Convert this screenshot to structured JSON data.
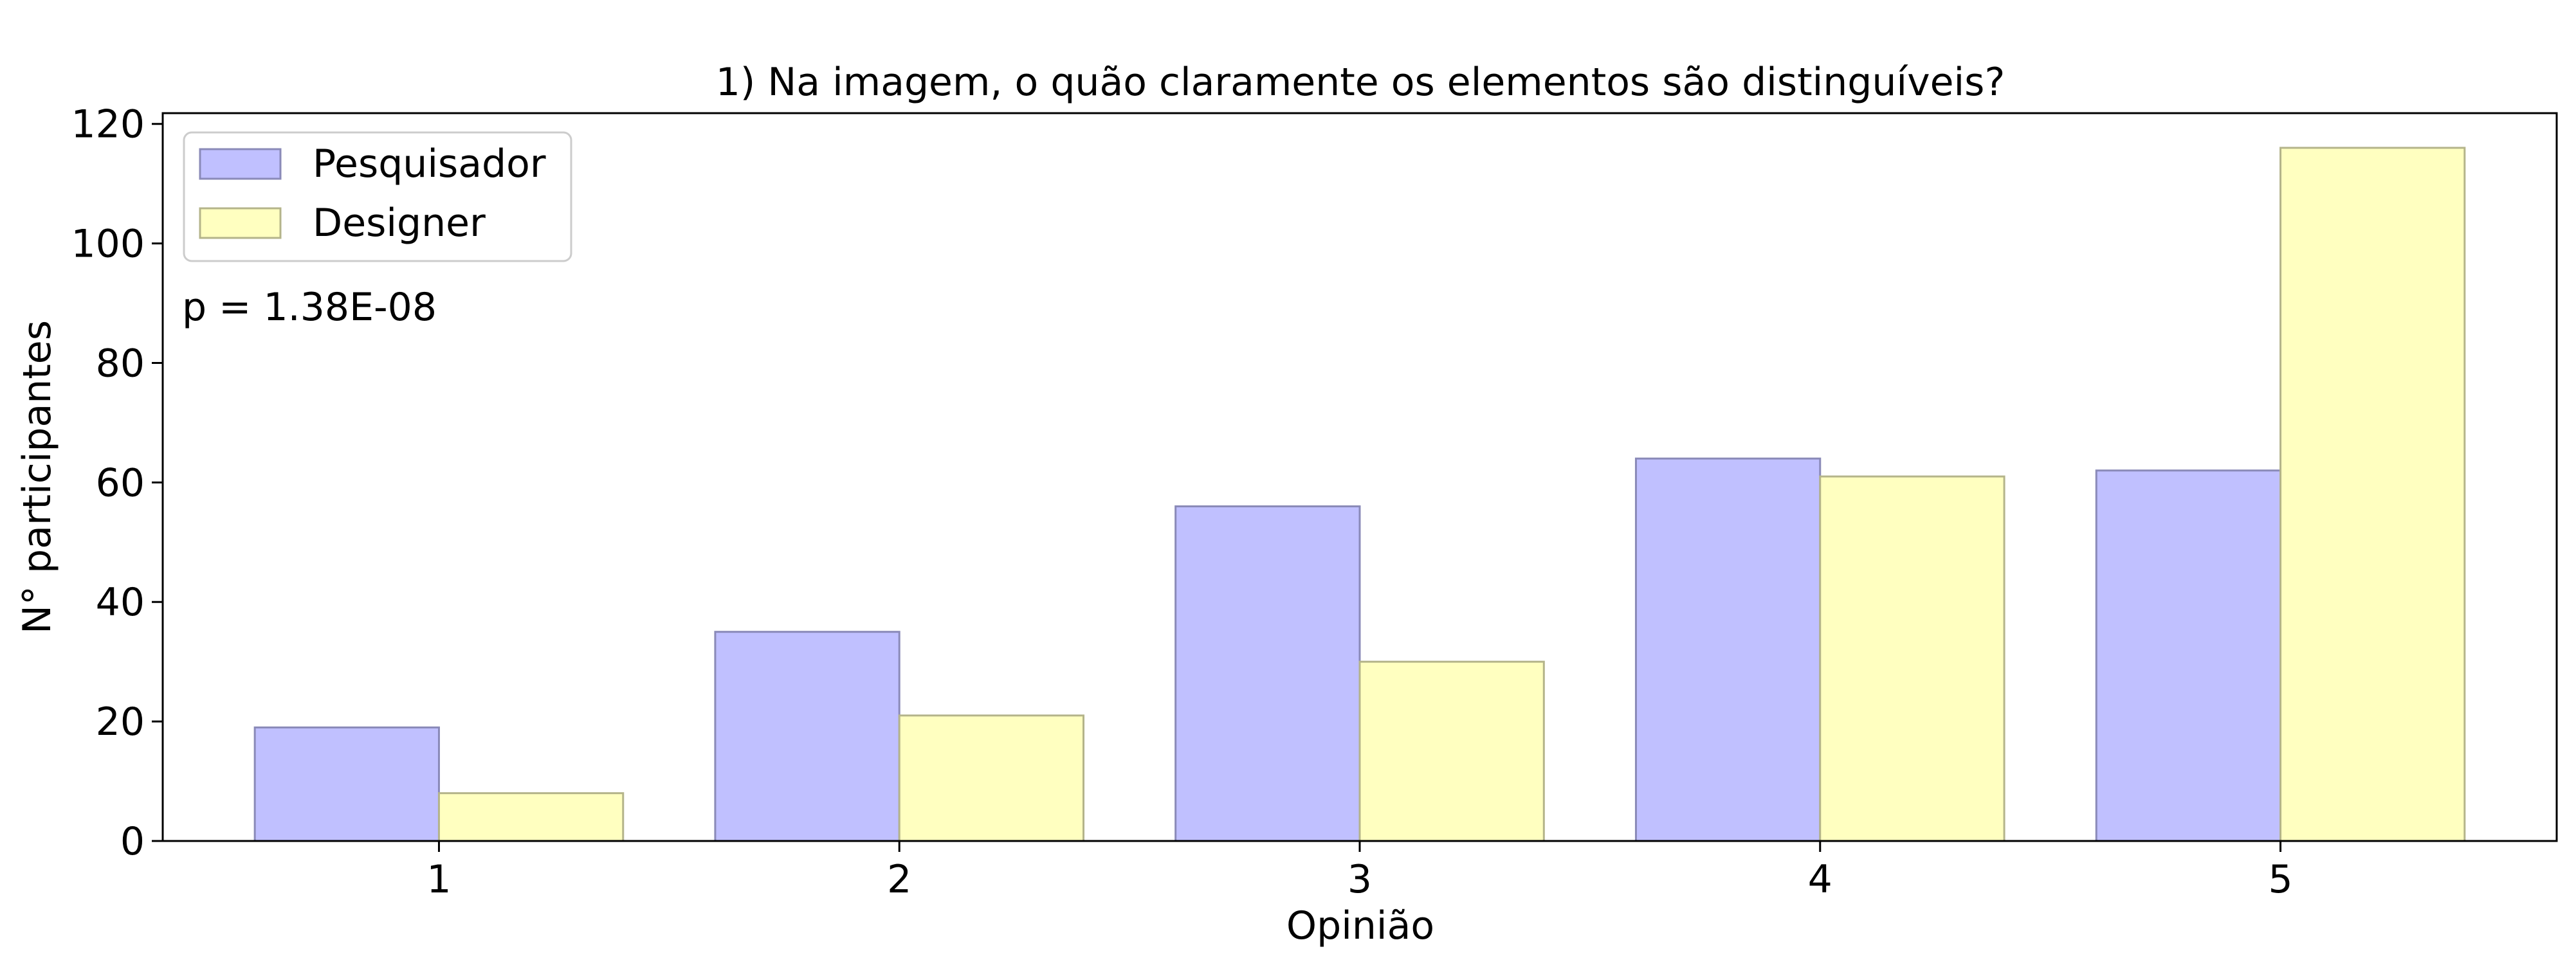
{
  "chart_data": {
    "type": "bar",
    "title": "1) Na imagem, o quão claramente os elementos são distinguíveis?",
    "xlabel": "Opinião",
    "ylabel": "N° participantes",
    "categories": [
      "1",
      "2",
      "3",
      "4",
      "5"
    ],
    "series": [
      {
        "name": "Pesquisador",
        "values": [
          19,
          35,
          56,
          64,
          62
        ],
        "color": "#c0c0ff"
      },
      {
        "name": "Designer",
        "values": [
          8,
          21,
          30,
          61,
          116
        ],
        "color": "#ffffc0"
      }
    ],
    "ylim": [
      0,
      121.8
    ],
    "yticks": [
      0,
      20,
      40,
      60,
      80,
      100,
      120
    ],
    "grid": false,
    "legend": "top-left",
    "annotation": "p = 1.38E-08"
  }
}
